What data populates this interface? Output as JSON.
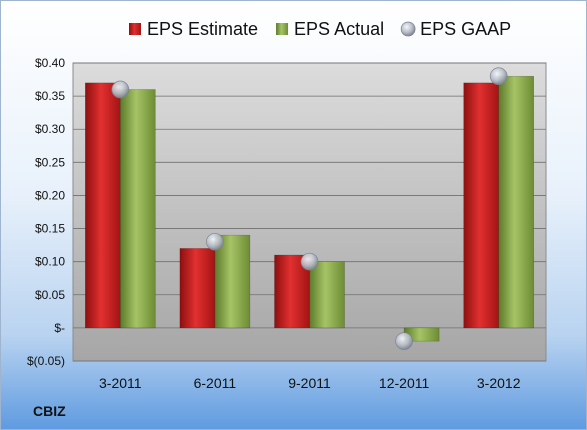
{
  "chart_data": {
    "type": "bar",
    "categories": [
      "3-2011",
      "6-2011",
      "9-2011",
      "12-2011",
      "3-2012"
    ],
    "series": [
      {
        "name": "EPS Estimate",
        "values": [
          0.37,
          0.12,
          0.11,
          null,
          0.37
        ],
        "color": "#cc1f1f"
      },
      {
        "name": "EPS Actual",
        "values": [
          0.36,
          0.14,
          0.1,
          -0.02,
          0.38
        ],
        "color": "#8fb04a"
      },
      {
        "name": "EPS GAAP",
        "values": [
          0.36,
          0.13,
          0.1,
          -0.02,
          0.38
        ],
        "color": "#b8bec8",
        "marker": "circle"
      }
    ],
    "yticks": [
      "$0.40",
      "$0.35",
      "$0.30",
      "$0.25",
      "$0.20",
      "$0.15",
      "$0.10",
      "$0.05",
      "$-",
      "$(0.05)"
    ],
    "ylim": [
      -0.05,
      0.4
    ],
    "grid": true,
    "legend_position": "top"
  },
  "ticker": "CBIZ"
}
